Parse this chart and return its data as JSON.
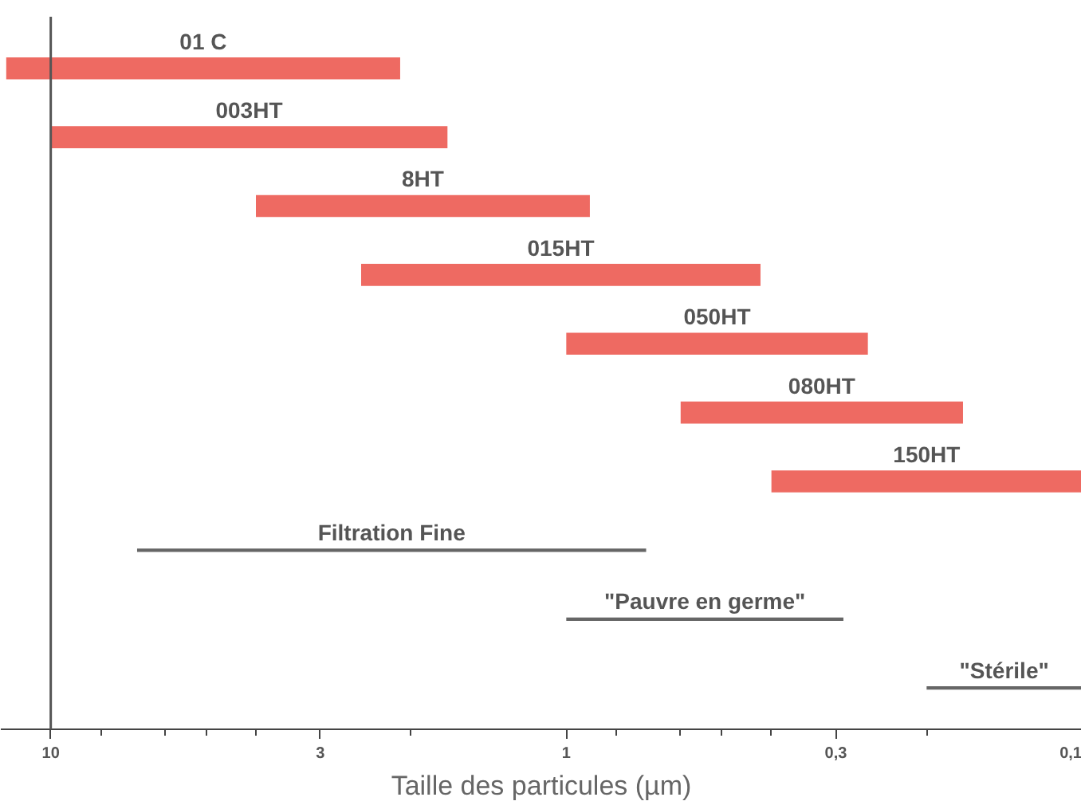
{
  "chart_data": {
    "type": "bar",
    "orientation": "horizontal",
    "log": "x",
    "xlabel": "Taille des particules (µm)",
    "categories": [
      "01 C",
      "003HT",
      "8HT",
      "015HT",
      "050HT",
      "080HT",
      "150HT",
      "Filtration Fine",
      "\"Pauvre en germe\"",
      "\"Stérile\""
    ],
    "series": [
      {
        "color": "#ee6a62",
        "base": [
          2.1,
          1.7,
          0.9,
          0.42,
          0.26,
          0.17,
          0.1,
          null,
          null,
          null
        ],
        "values": [
          10.1,
          8.3,
          3.1,
          2.08,
          0.74,
          0.43,
          0.3,
          null,
          null,
          null
        ]
      },
      {
        "color": "#666666",
        "base": [
          null,
          null,
          null,
          null,
          null,
          null,
          null,
          0.7,
          0.29,
          0.1
        ],
        "values": [
          null,
          null,
          null,
          null,
          null,
          null,
          null,
          6.1,
          0.71,
          0.1
        ]
      }
    ],
    "xlim": [
      12.5,
      0.1
    ],
    "xticks": [
      10,
      {
        "value": 8,
        "label": null
      },
      {
        "value": 6,
        "label": null
      },
      {
        "value": 5,
        "label": null
      },
      {
        "value": 4,
        "label": null
      },
      3,
      {
        "value": 2,
        "label": null
      },
      1,
      {
        "value": 0.8,
        "label": null
      },
      {
        "value": 0.6,
        "label": null
      },
      {
        "value": 0.5,
        "label": null
      },
      {
        "value": 0.4,
        "label": null
      },
      {
        "value": 0.3,
        "label": "0,3"
      },
      {
        "value": 0.2,
        "label": null
      },
      {
        "value": 0.1,
        "label": "0,1"
      }
    ],
    "ref_lines": [
      {
        "axis": "x",
        "value": 10,
        "color": "#555555"
      }
    ],
    "tick_labels": "x",
    "grid": false
  }
}
